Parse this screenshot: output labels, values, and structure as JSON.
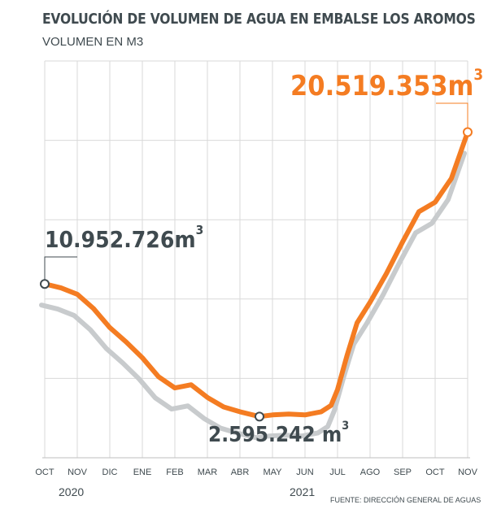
{
  "header": {
    "title": "EVOLUCIÓN DE VOLUMEN DE AGUA EN EMBALSE LOS AROMOS",
    "subtitle": "VOLUMEN EN M3"
  },
  "source": "FUENTE: DIRECCIÓN GENERAL DE AGUAS",
  "years": [
    "2020",
    "2021"
  ],
  "callouts": {
    "start": {
      "number": "10.952.726m",
      "exp": "3"
    },
    "end": {
      "number": "20.519.353m",
      "exp": "3"
    },
    "min": {
      "number": "2.595.242 m",
      "exp": "3"
    }
  },
  "colors": {
    "primary": "#f47c22",
    "shadow": "#c8cbcd",
    "text": "#3f4a4f",
    "grid": "#d9d9d9"
  },
  "chart_data": {
    "type": "line",
    "title": "EVOLUCIÓN DE VOLUMEN DE AGUA EN EMBALSE LOS AROMOS",
    "ylabel": "VOLUMEN EN M3",
    "categories": [
      "OCT",
      "NOV",
      "DIC",
      "ENE",
      "FEB",
      "MAR",
      "ABR",
      "MAY",
      "JUN",
      "JUL",
      "AGO",
      "SEP",
      "OCT",
      "NOV"
    ],
    "ylim": [
      0,
      25000000
    ],
    "grid": true,
    "series": [
      {
        "values": [
          [
            0,
            10952726
          ],
          [
            0.5,
            10700000
          ],
          [
            1.0,
            10300000
          ],
          [
            1.5,
            9400000
          ],
          [
            2.0,
            8200000
          ],
          [
            2.5,
            7300000
          ],
          [
            3.0,
            6300000
          ],
          [
            3.5,
            5100000
          ],
          [
            4.0,
            4400000
          ],
          [
            4.25,
            4500000
          ],
          [
            4.5,
            4600000
          ],
          [
            5.0,
            3800000
          ],
          [
            5.5,
            3200000
          ],
          [
            6.0,
            2900000
          ],
          [
            6.6,
            2595242
          ],
          [
            7.0,
            2700000
          ],
          [
            7.5,
            2750000
          ],
          [
            8.0,
            2700000
          ],
          [
            8.5,
            2900000
          ],
          [
            8.8,
            3300000
          ],
          [
            9.0,
            4300000
          ],
          [
            9.3,
            6500000
          ],
          [
            9.6,
            8500000
          ],
          [
            10.0,
            9800000
          ],
          [
            10.5,
            11600000
          ],
          [
            11.0,
            13600000
          ],
          [
            11.5,
            15500000
          ],
          [
            12.0,
            16100000
          ],
          [
            12.5,
            17600000
          ],
          [
            13.0,
            20519353
          ]
        ]
      }
    ]
  }
}
